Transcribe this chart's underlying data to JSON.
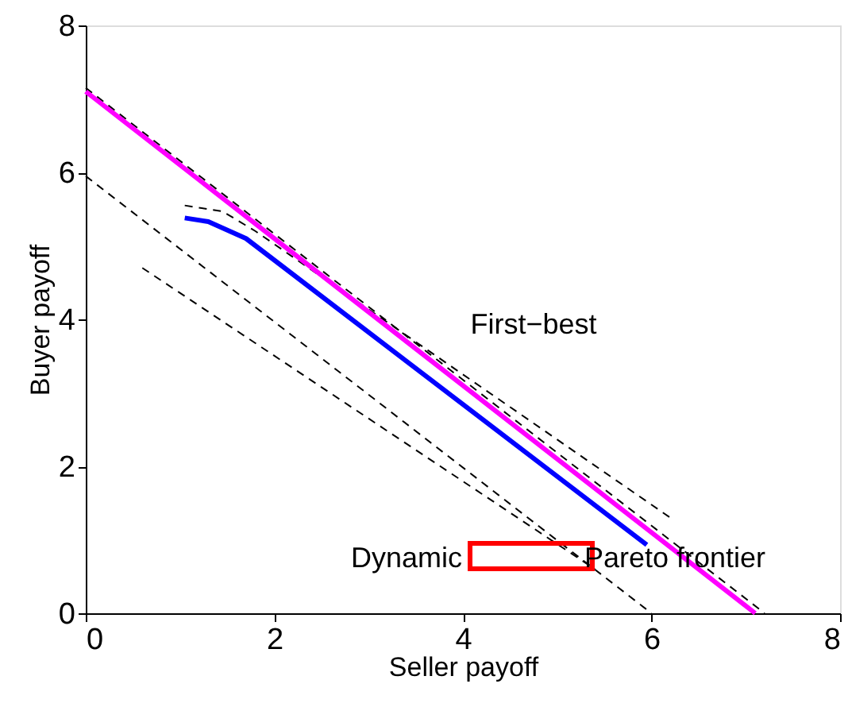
{
  "chart_data": {
    "type": "line",
    "xlabel": "Seller payoff",
    "ylabel": "Buyer payoff",
    "xlim": [
      0,
      8
    ],
    "ylim": [
      0,
      8
    ],
    "xticks": [
      0,
      2,
      4,
      6,
      8
    ],
    "yticks": [
      0,
      2,
      4,
      6,
      8
    ],
    "grid": false,
    "marker": "none",
    "series": [
      {
        "color": "#000000",
        "line_style": "dashed",
        "x": [
          0,
          7.2
        ],
        "values": [
          7.15,
          0
        ]
      },
      {
        "color": "#000000",
        "line_style": "dashed",
        "x": [
          1.05,
          1.45,
          1.8,
          6.2
        ],
        "values": [
          5.55,
          5.47,
          5.2,
          1.3
        ]
      },
      {
        "color": "#000000",
        "line_style": "dashed",
        "x": [
          0,
          6
        ],
        "values": [
          5.95,
          0
        ]
      },
      {
        "color": "#000000",
        "line_style": "dashed",
        "x": [
          0.6,
          5.4
        ],
        "values": [
          4.7,
          0.6
        ]
      },
      {
        "color": "#ff00ff",
        "line_style": "solid",
        "x": [
          0,
          7.1
        ],
        "values": [
          7.1,
          0
        ]
      },
      {
        "color": "#0000ff",
        "line_style": "solid",
        "x": [
          1.05,
          1.3,
          1.7,
          5.95
        ],
        "values": [
          5.38,
          5.33,
          5.1,
          0.93
        ]
      }
    ],
    "annotations": [
      "First−best",
      "Dynamic",
      "Pareto frontier"
    ]
  }
}
